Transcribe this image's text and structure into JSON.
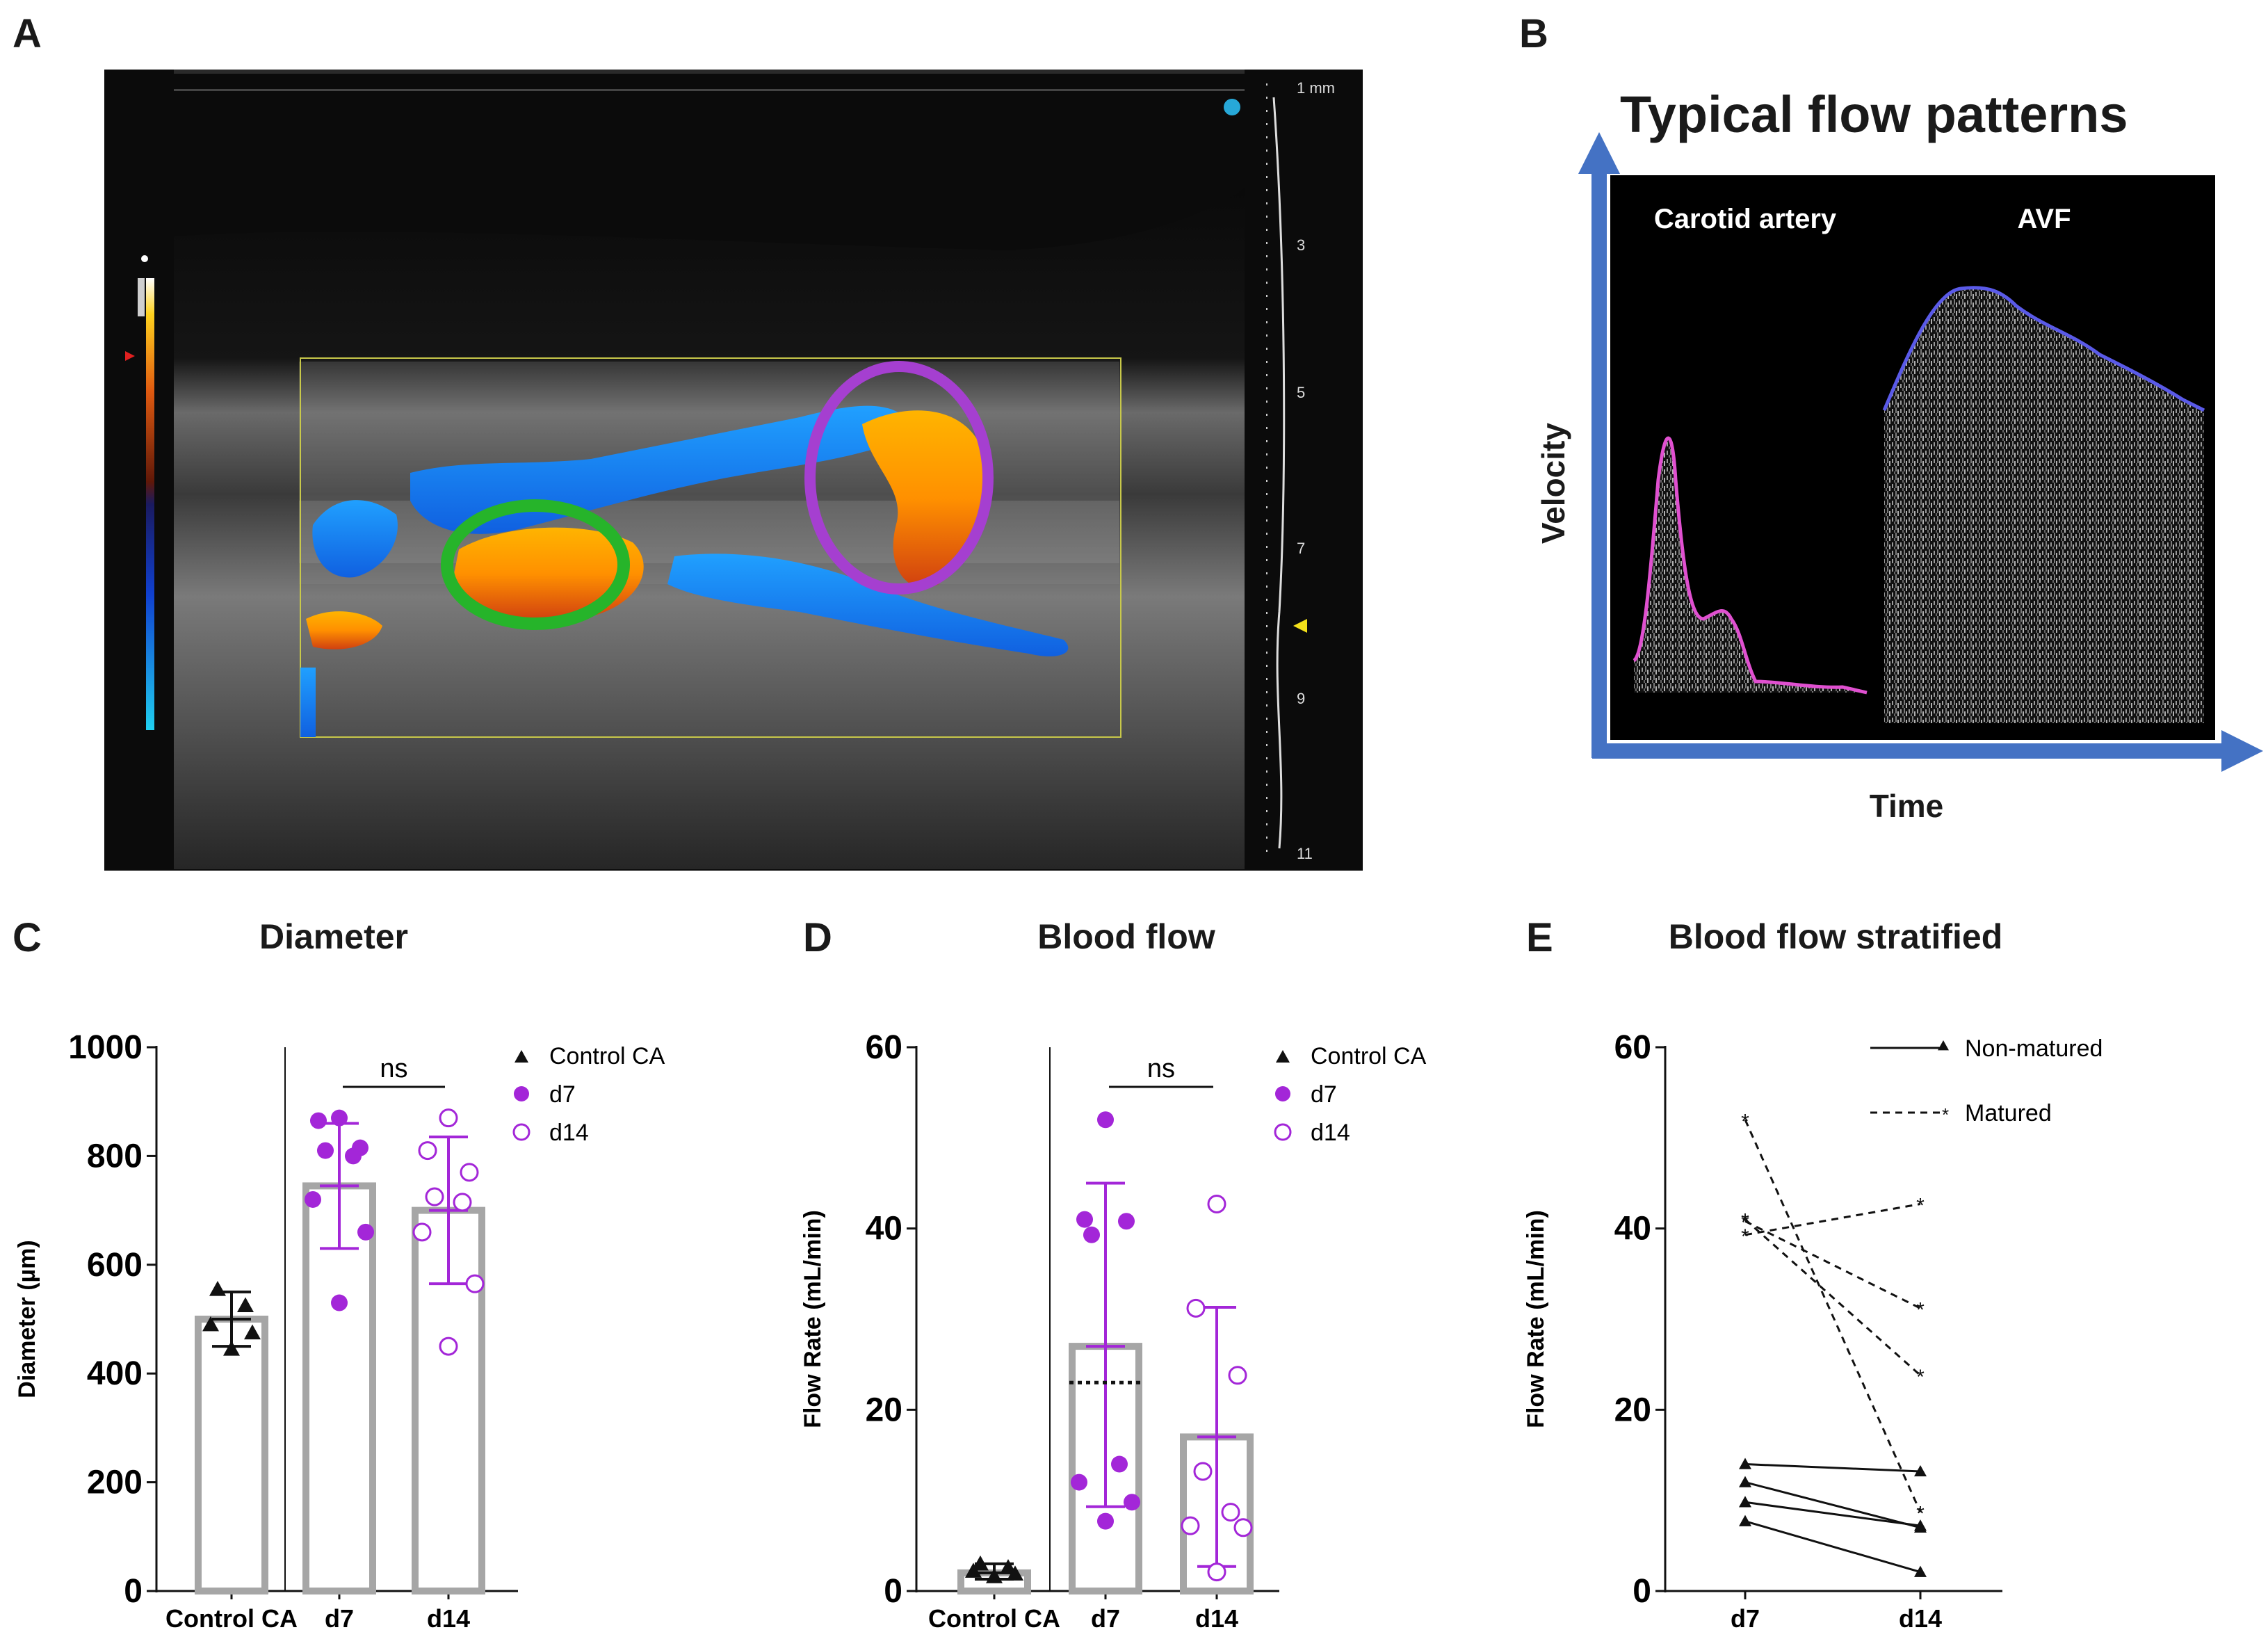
{
  "panel_letters": [
    "A",
    "B",
    "C",
    "D",
    "E"
  ],
  "panel_a": {
    "scale_labels": [
      "1 mm",
      "3",
      "5",
      "7",
      "9",
      "11"
    ]
  },
  "panel_b": {
    "title": "Typical flow patterns",
    "left_label": "Carotid artery",
    "right_label": "AVF",
    "y_axis_label": "Velocity",
    "x_axis_label": "Time"
  },
  "chart_data": [
    {
      "panel": "C",
      "type": "bar",
      "title": "Diameter",
      "ylabel": "Diameter (µm)",
      "xlabel": "",
      "ylim": [
        0,
        1000
      ],
      "yticks": [
        0,
        200,
        400,
        600,
        800,
        1000
      ],
      "categories": [
        "Control CA",
        "d7",
        "d14"
      ],
      "bar_values": [
        500,
        745,
        700
      ],
      "error_sd": [
        {
          "low": 450,
          "high": 550
        },
        {
          "low": 630,
          "high": 860
        },
        {
          "low": 565,
          "high": 835
        }
      ],
      "points": {
        "Control CA": [
          555,
          525,
          490,
          475,
          445
        ],
        "d7": [
          870,
          865,
          815,
          810,
          800,
          720,
          660,
          530
        ],
        "d14": [
          870,
          810,
          770,
          725,
          715,
          660,
          565,
          450
        ]
      },
      "legend": [
        "Control CA",
        "d7",
        "d14"
      ],
      "significance": "ns"
    },
    {
      "panel": "D",
      "type": "bar",
      "title": "Blood flow",
      "ylabel": "Flow Rate (mL/min)",
      "xlabel": "",
      "ylim": [
        0,
        60
      ],
      "yticks": [
        0,
        20,
        40,
        60
      ],
      "categories": [
        "Control CA",
        "d7",
        "d14"
      ],
      "bar_values": [
        2.0,
        27,
        17
      ],
      "median_d7": 23,
      "error_sd": [
        {
          "low": 1.3,
          "high": 3.0
        },
        {
          "low": 9.3,
          "high": 45
        },
        {
          "low": 2.7,
          "high": 31.3
        }
      ],
      "points": {
        "Control CA": [
          3.0,
          2.6,
          2.2,
          1.9,
          1.6
        ],
        "d7": [
          52,
          41,
          40.8,
          39.3,
          14,
          12,
          9.8,
          7.7
        ],
        "d14": [
          42.7,
          31.2,
          23.8,
          13.2,
          8.7,
          7.2,
          7.0,
          2.1
        ]
      },
      "legend": [
        "Control CA",
        "d7",
        "d14"
      ],
      "significance": "ns"
    },
    {
      "panel": "E",
      "type": "line",
      "title": "Blood flow stratified",
      "ylabel": "Flow Rate (mL/min)",
      "xlabel": "",
      "ylim": [
        0,
        60
      ],
      "yticks": [
        0,
        20,
        40,
        60
      ],
      "categories": [
        "d7",
        "d14"
      ],
      "legend": [
        "Non-matured",
        "Matured"
      ],
      "groups": [
        {
          "name": "Non-matured",
          "style": "solid",
          "marker": "triangle",
          "pairs": [
            [
              14,
              13.2
            ],
            [
              12,
              7.0
            ],
            [
              9.8,
              7.2
            ],
            [
              7.7,
              2.1
            ]
          ]
        },
        {
          "name": "Matured",
          "style": "dashed",
          "marker": "star",
          "pairs": [
            [
              52,
              8.7
            ],
            [
              41,
              23.8
            ],
            [
              40.8,
              31.2
            ],
            [
              39.3,
              42.7
            ]
          ]
        }
      ]
    }
  ]
}
